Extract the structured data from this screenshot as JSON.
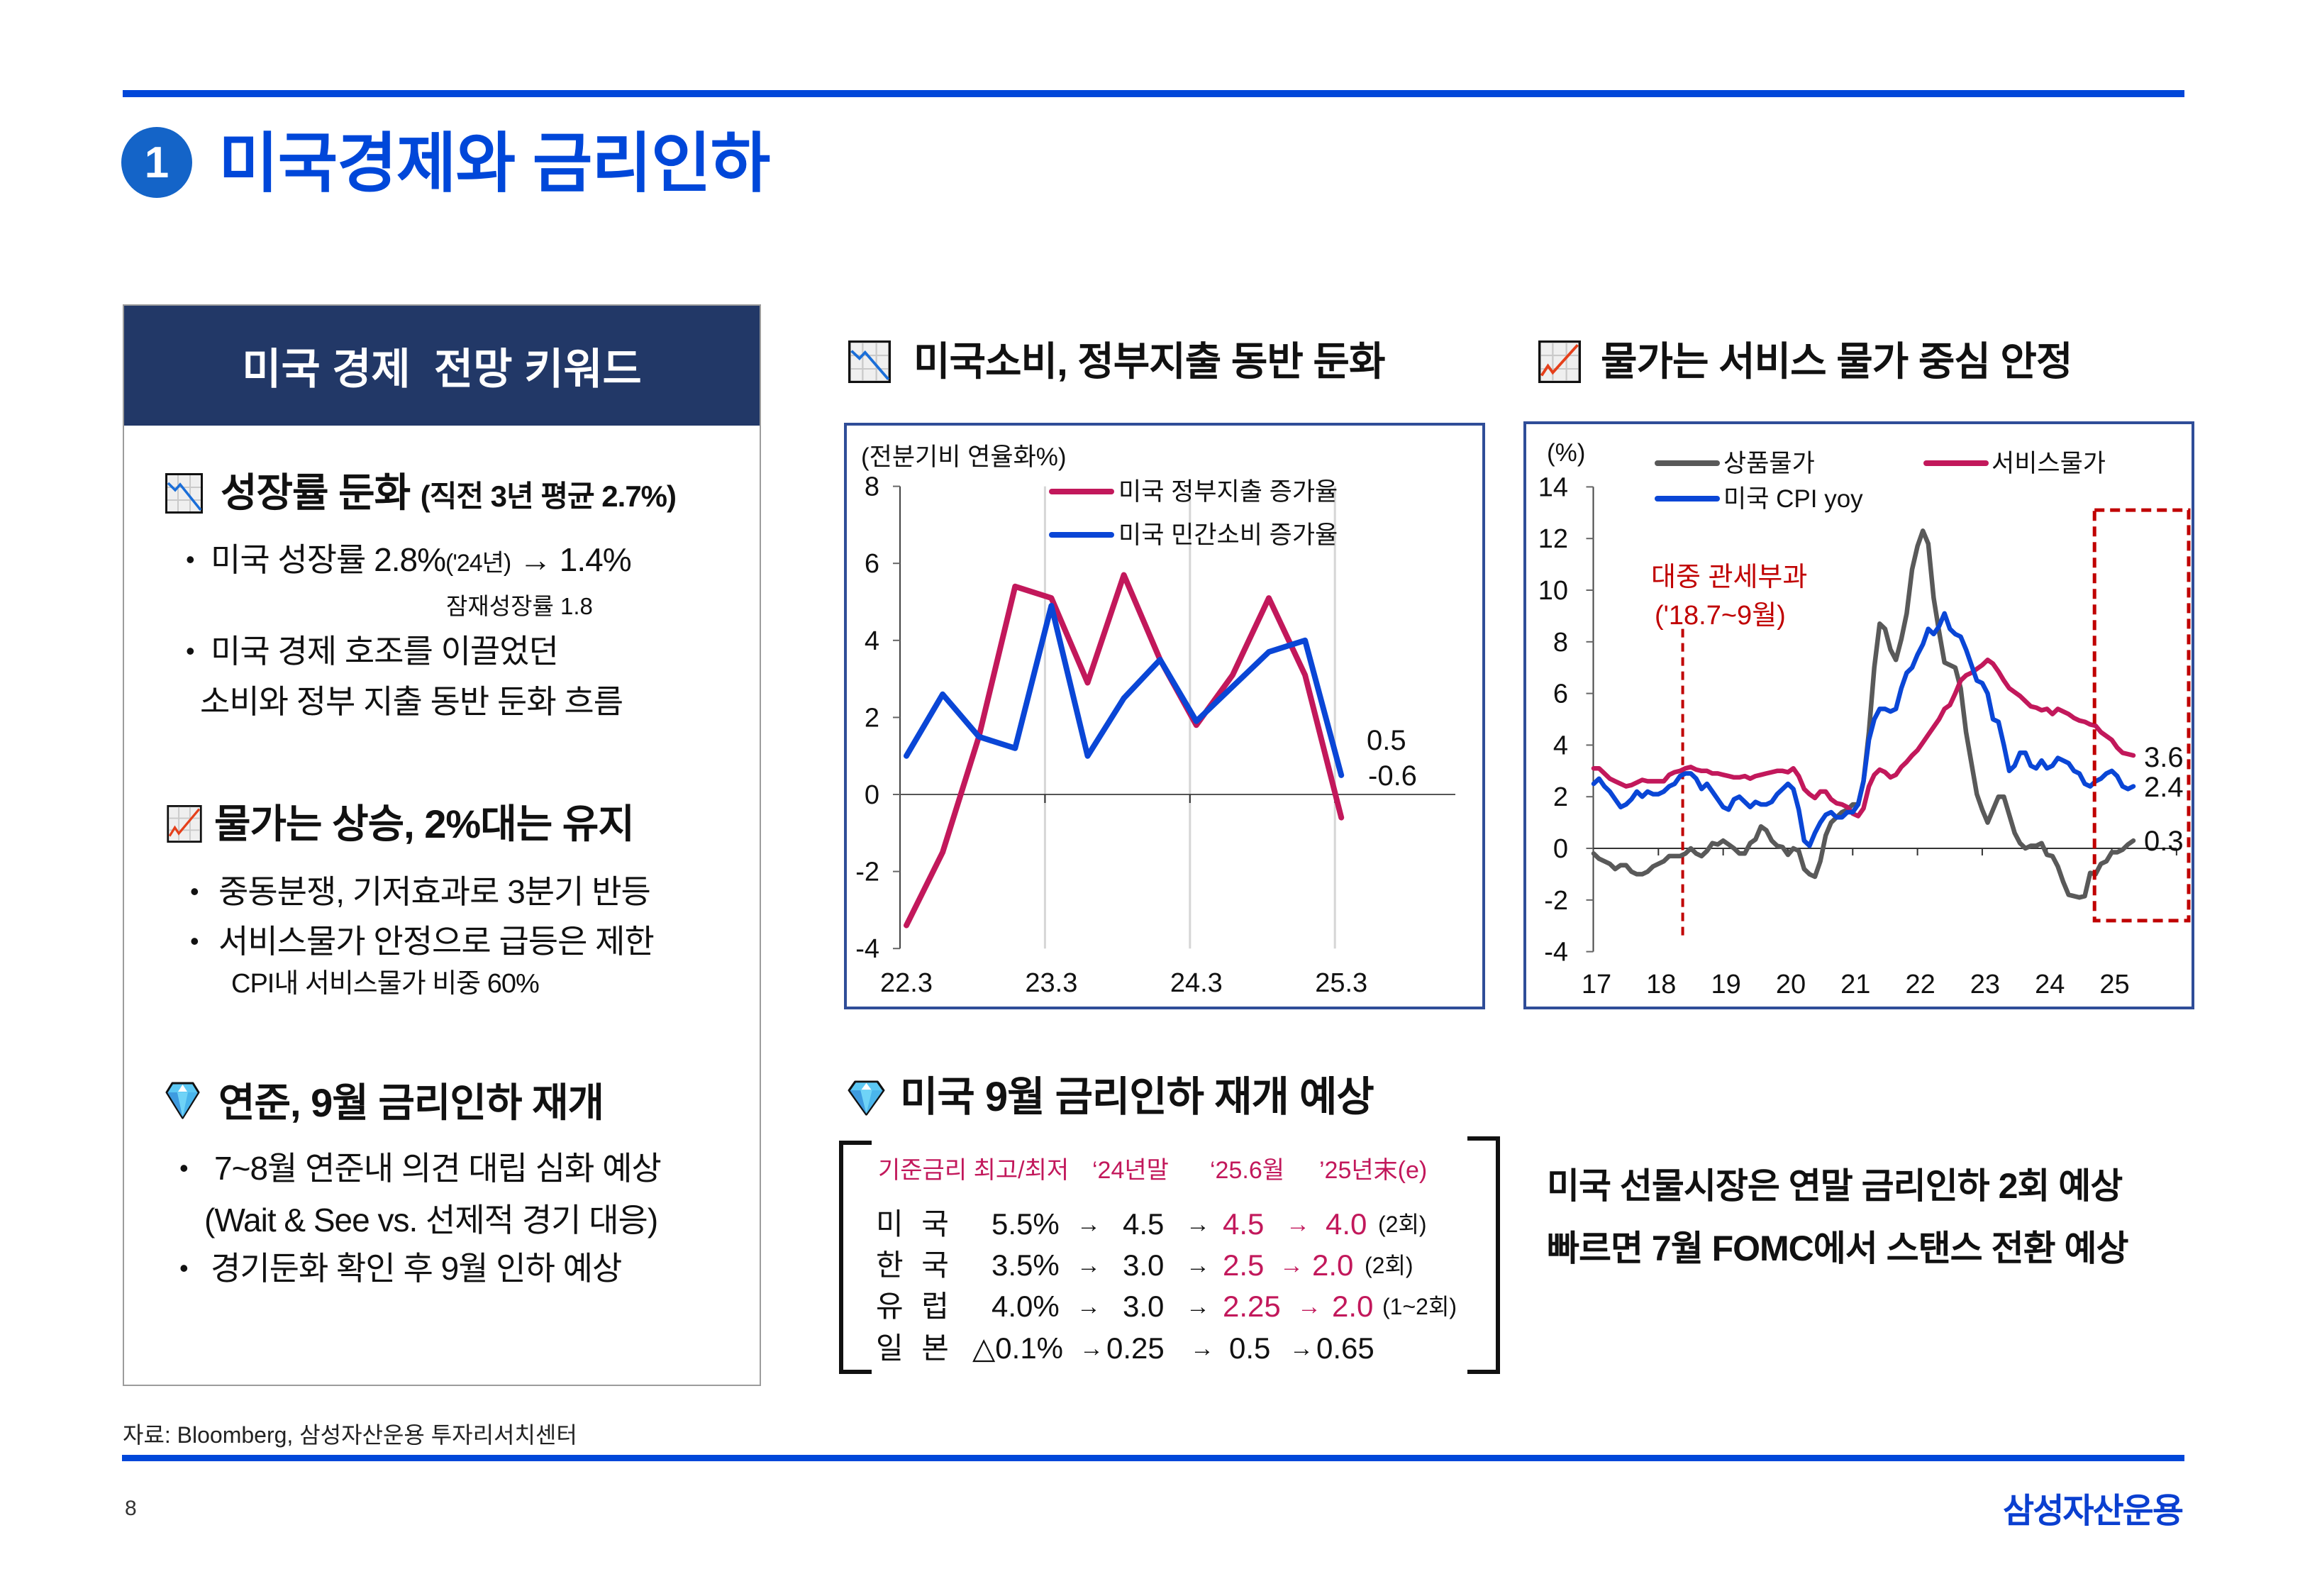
{
  "header": {
    "section_number": "1",
    "title": "미국경제와 금리인하"
  },
  "bullet_glyph": "•",
  "keywords_panel": {
    "title": "미국 경제  전망 키워드",
    "sections": [
      {
        "icon": "chart-decreasing-icon",
        "heading": "성장률 둔화",
        "heading_note": "(직전 3년 평균 2.7%)",
        "bullets": [
          {
            "text": "미국 성장률 2.8%",
            "small": "('24년)",
            "tail": "→ 1.4%",
            "note": "잠재성장률 1.8"
          },
          {
            "text": "미국 경제 호조를 이끌었던",
            "continuation": "소비와 정부 지출 동반 둔화 흐름"
          }
        ]
      },
      {
        "icon": "chart-increasing-icon",
        "heading": "물가는 상승, 2%대는 유지",
        "bullets": [
          {
            "text": "중동분쟁, 기저효과로 3분기 반등"
          },
          {
            "text": "서비스물가 안정으로 급등은 제한",
            "note": "CPI내 서비스물가 비중 60%"
          }
        ]
      },
      {
        "icon": "gem-icon",
        "heading": "연준, 9월 금리인하 재개",
        "bullets": [
          {
            "text": "7~8월 연준내 의견 대립 심화 예상",
            "continuation": "(Wait & See vs. 선제적 경기 대응)"
          },
          {
            "text": "경기둔화 확인 후 9월 인하 예상"
          }
        ]
      }
    ]
  },
  "rate_outlook": {
    "icon": "gem-icon",
    "title": "미국 9월 금리인하 재개 예상",
    "header": [
      "기준금리 최고/최저",
      "‘24년말",
      "‘25.6월",
      "’25년末(e)"
    ],
    "arrow": "→",
    "rows": [
      {
        "country": "미 국",
        "peak_low": "5.5%",
        "end_2024": "4.5",
        "jun_2025": "4.5",
        "end_2025e": "4.0",
        "cuts": "(2회)",
        "highlight_forecast": true
      },
      {
        "country": "한 국",
        "peak_low": "3.5%",
        "end_2024": "3.0",
        "jun_2025": "2.5",
        "end_2025e": "2.0",
        "cuts": "(2회)",
        "highlight_forecast": true
      },
      {
        "country": "유 럽",
        "peak_low": "4.0%",
        "end_2024": "3.0",
        "jun_2025": "2.25",
        "end_2025e": "2.0",
        "cuts": "(1~2회)",
        "highlight_forecast": true
      },
      {
        "country": "일 본",
        "peak_low": "△0.1%",
        "end_2024": "0.25",
        "jun_2025": "0.5",
        "end_2025e": "0.65",
        "cuts": "",
        "highlight_forecast": false
      }
    ]
  },
  "market_view": {
    "lines": [
      "미국 선물시장은 연말 금리인하 2회 예상",
      "빠르면 7월 FOMC에서 스탠스 전환 예상"
    ]
  },
  "footer": {
    "source": "자료: Bloomberg, 삼성자산운용 투자리서치센터",
    "page_number": "8",
    "logo": "삼성자산운용"
  },
  "colors": {
    "brand_blue": "#0047D9",
    "badge_blue": "#1464C8",
    "panel_navy": "#223867",
    "chart_frame": "#2F4D98",
    "highlight_magenta": "#C2185B",
    "annotation_red": "#C00000"
  },
  "chart_data": [
    {
      "type": "line",
      "title": "미국소비, 정부지출 동반 둔화",
      "title_icon": "chart-decreasing-icon",
      "ylabel": "(전분기비 연율화%)",
      "xlabel": "",
      "x": [
        "22.3",
        "22.6",
        "22.9",
        "22.12",
        "23.3",
        "23.6",
        "23.9",
        "23.12",
        "24.3",
        "24.6",
        "24.9",
        "24.12",
        "25.3"
      ],
      "x_tick_labels": [
        "22.3",
        "23.3",
        "24.3",
        "25.3"
      ],
      "ylim": [
        -4,
        8
      ],
      "y_ticks": [
        8,
        6,
        4,
        2,
        0,
        -2,
        -4
      ],
      "y_tick_labels": [
        "8",
        "6",
        "4",
        "2",
        "0",
        "-2",
        "-4"
      ],
      "grid": "vertical lines at x tick labels",
      "legend_position": "top-center",
      "series": [
        {
          "name": "미국 정부지출 증가율",
          "color": "#C2185B",
          "values": [
            -3.4,
            -1.5,
            1.5,
            5.4,
            5.1,
            2.9,
            5.7,
            3.5,
            1.8,
            3.1,
            5.1,
            3.1,
            -0.6
          ]
        },
        {
          "name": "미국 민간소비 증가율",
          "color": "#0A46D6",
          "values": [
            1.0,
            2.6,
            1.5,
            1.2,
            4.9,
            1.0,
            2.5,
            3.5,
            1.9,
            2.8,
            3.7,
            4.0,
            0.5
          ]
        }
      ],
      "end_labels": [
        "0.5",
        "-0.6"
      ]
    },
    {
      "type": "line",
      "title": "물가는 서비스 물가 중심 안정",
      "title_icon": "chart-increasing-icon",
      "ylabel": "(%)",
      "xlabel": "",
      "x_start": "2017.01",
      "x_frequency": "monthly",
      "x_axis_range": [
        "2017.01",
        "2026.01"
      ],
      "x_tick_labels": [
        "17",
        "18",
        "19",
        "20",
        "21",
        "22",
        "23",
        "24",
        "25"
      ],
      "ylim": [
        -4,
        14
      ],
      "y_ticks": [
        14,
        12,
        10,
        8,
        6,
        4,
        2,
        0,
        -2,
        -4
      ],
      "y_tick_labels": [
        "14",
        "12",
        "10",
        "8",
        "6",
        "4",
        "2",
        "0",
        "-2",
        "-4"
      ],
      "grid": "none",
      "legend_position": "top",
      "series": [
        {
          "name": "상품물가",
          "color": "#595959",
          "values": [
            -0.2,
            -0.4,
            -0.5,
            -0.6,
            -0.8,
            -0.65,
            -0.65,
            -0.9,
            -1.0,
            -1.0,
            -0.9,
            -0.7,
            -0.6,
            -0.5,
            -0.3,
            -0.3,
            -0.3,
            -0.2,
            0.0,
            -0.2,
            -0.3,
            -0.1,
            0.2,
            0.15,
            0.3,
            0.15,
            0.0,
            -0.2,
            -0.2,
            0.2,
            0.35,
            0.85,
            0.7,
            0.3,
            0.1,
            0.05,
            -0.25,
            0.0,
            -0.1,
            -0.8,
            -1.0,
            -1.1,
            -0.5,
            0.5,
            1.0,
            1.2,
            1.4,
            1.5,
            1.7,
            1.7,
            2.6,
            4.5,
            7.0,
            8.7,
            8.5,
            7.7,
            7.3,
            8.1,
            9.1,
            10.8,
            11.7,
            12.3,
            11.8,
            9.7,
            8.4,
            7.2,
            7.1,
            7.0,
            6.2,
            4.5,
            3.3,
            2.1,
            1.5,
            1.0,
            1.5,
            2.0,
            2.0,
            1.3,
            0.6,
            0.2,
            0.0,
            0.1,
            0.1,
            0.2,
            -0.25,
            -0.3,
            -0.7,
            -1.3,
            -1.8,
            -1.85,
            -1.9,
            -1.85,
            -0.95,
            -1.0,
            -0.6,
            -0.5,
            -0.15,
            -0.15,
            -0.05,
            0.15,
            0.3
          ]
        },
        {
          "name": "서비스물가",
          "color": "#C2185B",
          "values": [
            3.1,
            3.1,
            2.9,
            2.7,
            2.6,
            2.5,
            2.4,
            2.45,
            2.55,
            2.65,
            2.6,
            2.6,
            2.6,
            2.6,
            2.85,
            2.95,
            3.0,
            3.1,
            3.15,
            3.05,
            3.0,
            3.0,
            2.9,
            2.9,
            2.85,
            2.8,
            2.75,
            2.75,
            2.8,
            2.7,
            2.8,
            2.85,
            2.9,
            2.95,
            3.0,
            3.0,
            2.95,
            3.1,
            2.8,
            2.3,
            2.1,
            1.95,
            2.2,
            2.2,
            1.9,
            1.75,
            1.7,
            1.6,
            1.35,
            1.25,
            1.55,
            2.4,
            2.85,
            3.05,
            2.95,
            2.75,
            2.85,
            3.15,
            3.35,
            3.6,
            3.8,
            4.1,
            4.4,
            4.7,
            5.0,
            5.4,
            5.55,
            6.0,
            6.5,
            6.7,
            6.8,
            6.95,
            7.1,
            7.3,
            7.15,
            6.85,
            6.5,
            6.2,
            6.05,
            5.9,
            5.7,
            5.5,
            5.45,
            5.35,
            5.4,
            5.2,
            5.4,
            5.3,
            5.2,
            5.05,
            4.95,
            4.9,
            4.8,
            4.75,
            4.5,
            4.35,
            4.2,
            3.9,
            3.7,
            3.65,
            3.6
          ]
        },
        {
          "name": "미국 CPI yoy",
          "color": "#0A46D6",
          "values": [
            2.5,
            2.7,
            2.4,
            2.2,
            1.9,
            1.6,
            1.7,
            1.9,
            2.2,
            2.0,
            2.2,
            2.1,
            2.1,
            2.2,
            2.4,
            2.5,
            2.8,
            2.9,
            2.9,
            2.7,
            2.3,
            2.5,
            2.2,
            1.9,
            1.6,
            1.5,
            1.9,
            2.0,
            1.8,
            1.6,
            1.8,
            1.7,
            1.7,
            1.8,
            2.1,
            2.3,
            2.5,
            2.3,
            1.5,
            0.3,
            0.1,
            0.6,
            1.0,
            1.3,
            1.4,
            1.2,
            1.2,
            1.4,
            1.4,
            1.7,
            2.6,
            4.2,
            5.0,
            5.4,
            5.4,
            5.3,
            5.4,
            6.2,
            6.8,
            7.0,
            7.5,
            7.9,
            8.5,
            8.3,
            8.6,
            9.1,
            8.5,
            8.3,
            8.2,
            7.7,
            7.1,
            6.5,
            6.4,
            6.0,
            5.0,
            4.9,
            4.0,
            3.0,
            3.2,
            3.7,
            3.7,
            3.2,
            3.1,
            3.4,
            3.1,
            3.2,
            3.5,
            3.4,
            3.3,
            3.0,
            2.9,
            2.5,
            2.4,
            2.6,
            2.7,
            2.9,
            3.0,
            2.8,
            2.4,
            2.3,
            2.4
          ]
        }
      ],
      "annotations": [
        {
          "text_lines": [
            "대중 관세부과",
            "('18.7~9월)"
          ],
          "kind": "vertical dashed line"
        },
        {
          "text_lines": [],
          "kind": "dashed highlight box over recent period"
        }
      ],
      "end_labels": [
        "3.6",
        "2.4",
        "0.3"
      ]
    }
  ]
}
